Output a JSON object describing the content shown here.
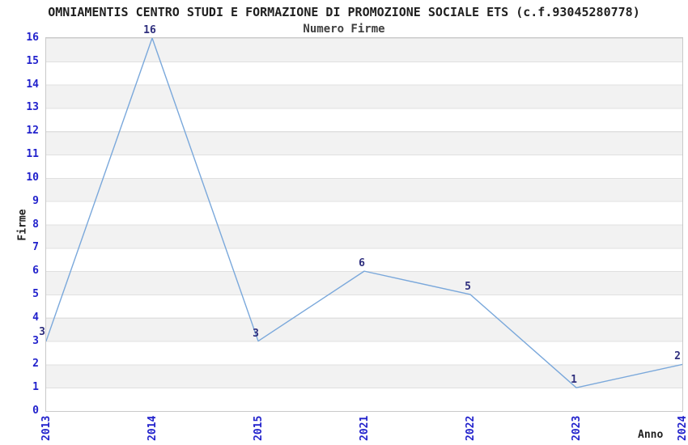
{
  "chart_data": {
    "type": "line",
    "title": "OMNIAMENTIS CENTRO STUDI E FORMAZIONE DI PROMOZIONE SOCIALE ETS (c.f.93045280778)",
    "subtitle": "Numero Firme",
    "xlabel": "Anno",
    "ylabel": "Firme",
    "categories": [
      "2013",
      "2014",
      "2015",
      "2021",
      "2022",
      "2023",
      "2024"
    ],
    "values": [
      3,
      16,
      3,
      6,
      5,
      1,
      2
    ],
    "point_labels": [
      "3",
      "16",
      "3",
      "6",
      "5",
      "1",
      "2"
    ],
    "yticks": [
      "0",
      "1",
      "2",
      "3",
      "4",
      "5",
      "6",
      "7",
      "8",
      "9",
      "10",
      "11",
      "12",
      "13",
      "14",
      "15",
      "16"
    ],
    "ylim": [
      0,
      16
    ],
    "grid": "horizontal-bands-alternating",
    "legend_position": "none",
    "x_tick_rotation_deg": 90,
    "colors": {
      "line": "#7aa8db",
      "tick_labels": "#2222cc",
      "point_labels": "#2e2e7d",
      "band_fill": "#f2f2f2",
      "gridline": "#e0e0e0",
      "axis_border": "#c9c9c9",
      "title": "#1f1f1f",
      "subtitle": "#3f3f3f",
      "axis_labels": "#1f1f1f",
      "background": "#ffffff"
    }
  }
}
